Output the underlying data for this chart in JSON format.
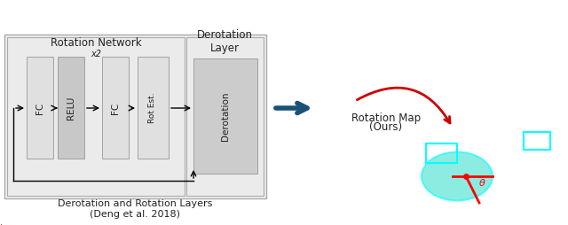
{
  "fig_width": 6.4,
  "fig_height": 2.54,
  "dpi": 100,
  "bg_color": "#ffffff",
  "left_panel_bg": "#f0f0f0",
  "right_box_bg": "#d8d8d8",
  "box_light": "#e0e0e0",
  "box_dark": "#c8c8c8",
  "derotation_bg": "#cccccc",
  "title_rot_net": "Rotation Network",
  "title_derot_layer": "Derotation\nLayer",
  "x2_label": "x2",
  "label_fc1": "FC",
  "label_relu": "RELU",
  "label_fc2": "FC",
  "label_rotest": "Rot Est.",
  "label_derotation": "Derotation",
  "caption_left": "Derotation and Rotation Layers\n(Deng et al. 2018)",
  "caption_right_line1": "Rotation Map",
  "caption_right_line2": "(Ours)",
  "arrow_color": "#1a5276",
  "red_curve_color": "#cc0000",
  "text_color": "#222222"
}
